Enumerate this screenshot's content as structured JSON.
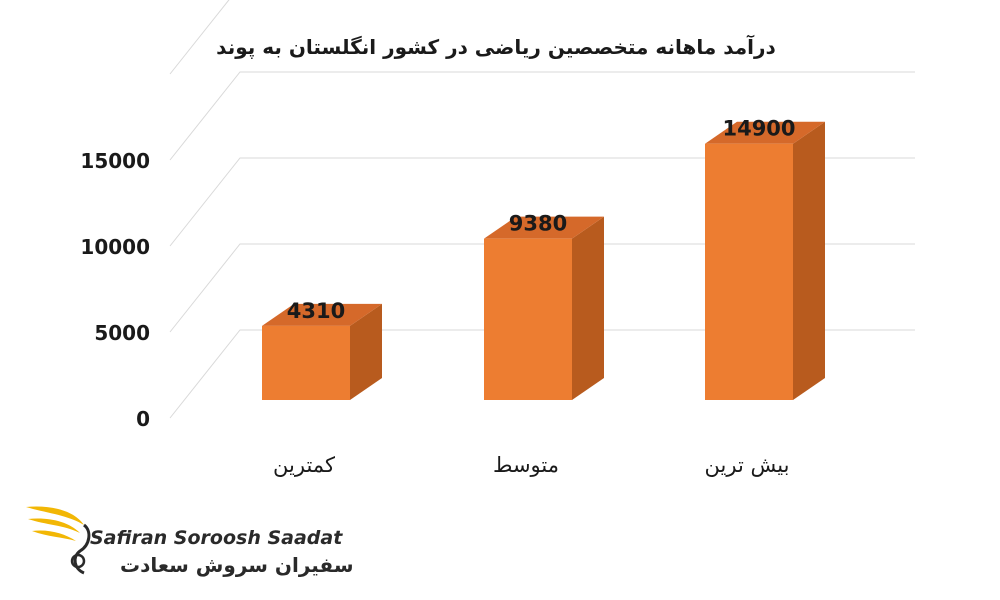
{
  "chart_data": {
    "type": "bar",
    "title": "درآمد ماهانه متخصصین ریاضی در کشور انگلستان به پوند",
    "categories": [
      "کمترین",
      "متوسط",
      "بیش ترین"
    ],
    "values": [
      4310,
      9380,
      14900
    ],
    "data_labels": [
      "4310",
      "9380",
      "14900"
    ],
    "y_ticks": [
      0,
      5000,
      10000,
      15000
    ],
    "ylim": [
      0,
      20000
    ],
    "grid": true,
    "style": "3d-column",
    "colors": {
      "front": "#ED7D31",
      "side": "#B85B1E",
      "top": "#D5692A"
    }
  },
  "logo": {
    "name_en": "Safiran Soroosh Saadat",
    "name_fa": "سفیران سروش سعادت",
    "colors": {
      "wing": "#F2B705",
      "text": "#2a2a2a"
    }
  }
}
